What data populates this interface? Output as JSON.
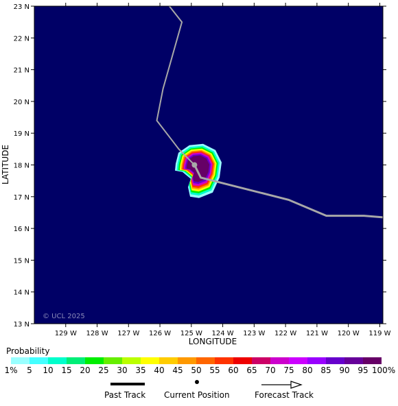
{
  "map": {
    "ylabel": "LATITUDE",
    "xlabel": "LONGITUDE",
    "watermark": "© UCL 2025",
    "background_color": "#000066",
    "lat_ticks": [
      "23 N",
      "22 N",
      "21 N",
      "20 N",
      "19 N",
      "18 N",
      "17 N",
      "16 N",
      "15 N",
      "14 N",
      "13 N"
    ],
    "lon_ticks": [
      "129 W",
      "128 W",
      "127 W",
      "126 W",
      "125 W",
      "124 W",
      "123 W",
      "122 W",
      "121 W",
      "120 W",
      "119 W"
    ],
    "past_track": [
      {
        "lon": -125.7,
        "lat": 23.0
      },
      {
        "lon": -125.3,
        "lat": 22.5
      },
      {
        "lon": -125.9,
        "lat": 20.4
      },
      {
        "lon": -126.1,
        "lat": 19.4
      },
      {
        "lon": -125.4,
        "lat": 18.5
      },
      {
        "lon": -124.9,
        "lat": 18.0
      }
    ],
    "current_position": {
      "lon": -124.9,
      "lat": 18.0
    },
    "forecast_track": [
      {
        "lon": -124.9,
        "lat": 18.0
      },
      {
        "lon": -124.7,
        "lat": 17.6
      },
      {
        "lon": -121.9,
        "lat": 16.9
      },
      {
        "lon": -120.7,
        "lat": 16.4
      },
      {
        "lon": -119.5,
        "lat": 16.4
      },
      {
        "lon": -118.9,
        "lat": 16.35
      }
    ],
    "probability_field": {
      "lon": -124.8,
      "lat": 17.95
    }
  },
  "legend": {
    "probability_title": "Probability",
    "scale_colors": [
      "#99ffff",
      "#44ffff",
      "#00ffcc",
      "#00ee77",
      "#00ee00",
      "#66ee00",
      "#bbff00",
      "#ffff00",
      "#ffcc00",
      "#ff9900",
      "#ff6600",
      "#ff3300",
      "#ee0000",
      "#cc0066",
      "#cc00cc",
      "#cc00ff",
      "#9900ff",
      "#6600cc",
      "#660099",
      "#660066"
    ],
    "scale_labels": [
      "1%",
      "5",
      "10",
      "15",
      "20",
      "25",
      "30",
      "35",
      "40",
      "45",
      "50",
      "55",
      "60",
      "65",
      "70",
      "75",
      "80",
      "85",
      "90",
      "95",
      "100%"
    ],
    "past_track_label": "Past Track",
    "current_position_label": "Current Position",
    "forecast_track_label": "Forecast Track"
  }
}
